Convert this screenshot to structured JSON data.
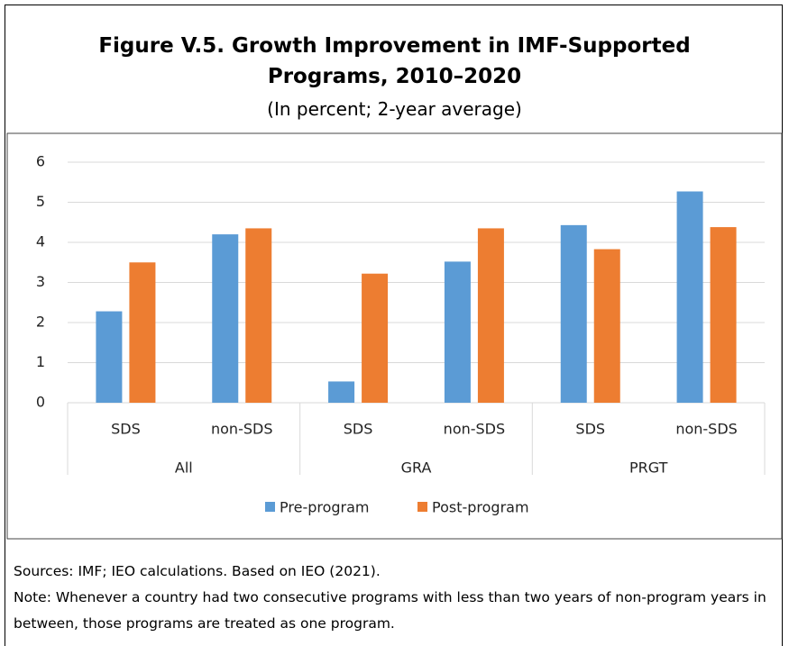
{
  "chart_data": {
    "type": "bar",
    "title": "Figure V.5. Growth Improvement in IMF-Supported Programs, 2010–2020",
    "subtitle": "(In percent; 2-year average)",
    "categories": [
      "SDS",
      "non-SDS",
      "SDS",
      "non-SDS",
      "SDS",
      "non-SDS"
    ],
    "groups": [
      "All",
      "GRA",
      "PRGT"
    ],
    "series": [
      {
        "name": "Pre-program",
        "color": "#5b9bd5",
        "values": [
          2.28,
          4.2,
          0.53,
          3.52,
          4.43,
          5.27
        ]
      },
      {
        "name": "Post-program",
        "color": "#ed7d31",
        "values": [
          3.5,
          4.35,
          3.22,
          4.35,
          3.83,
          4.38
        ]
      }
    ],
    "ylim": [
      0,
      6
    ],
    "yticks": [
      0,
      1,
      2,
      3,
      4,
      5,
      6
    ],
    "grid": true,
    "legend": "bottom"
  },
  "notes": {
    "sources": "Sources: IMF; IEO calculations. Based on IEO (2021).",
    "note": "Note: Whenever a country had two consecutive programs with less than two years of non-program years in between, those programs are treated as one program."
  }
}
